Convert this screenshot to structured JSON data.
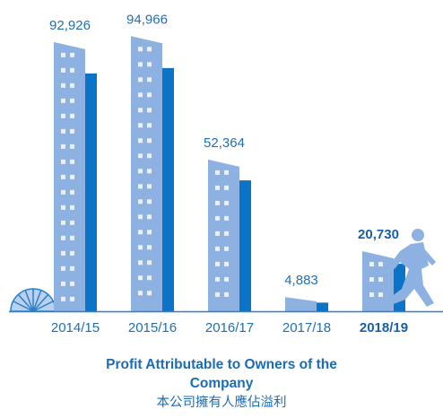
{
  "chart_data": {
    "type": "bar",
    "title": "Profit Attributable to Owners of the Company",
    "subtitle": "本公司擁有人應佔溢利",
    "categories": [
      "2014/15",
      "2015/16",
      "2016/17",
      "2017/18",
      "2018/19"
    ],
    "values": [
      92926,
      94966,
      52364,
      4883,
      20730
    ],
    "value_labels": [
      "92,926",
      "94,966",
      "52,364",
      "4,883",
      "20,730"
    ],
    "color": "#8db2e2"
  }
}
